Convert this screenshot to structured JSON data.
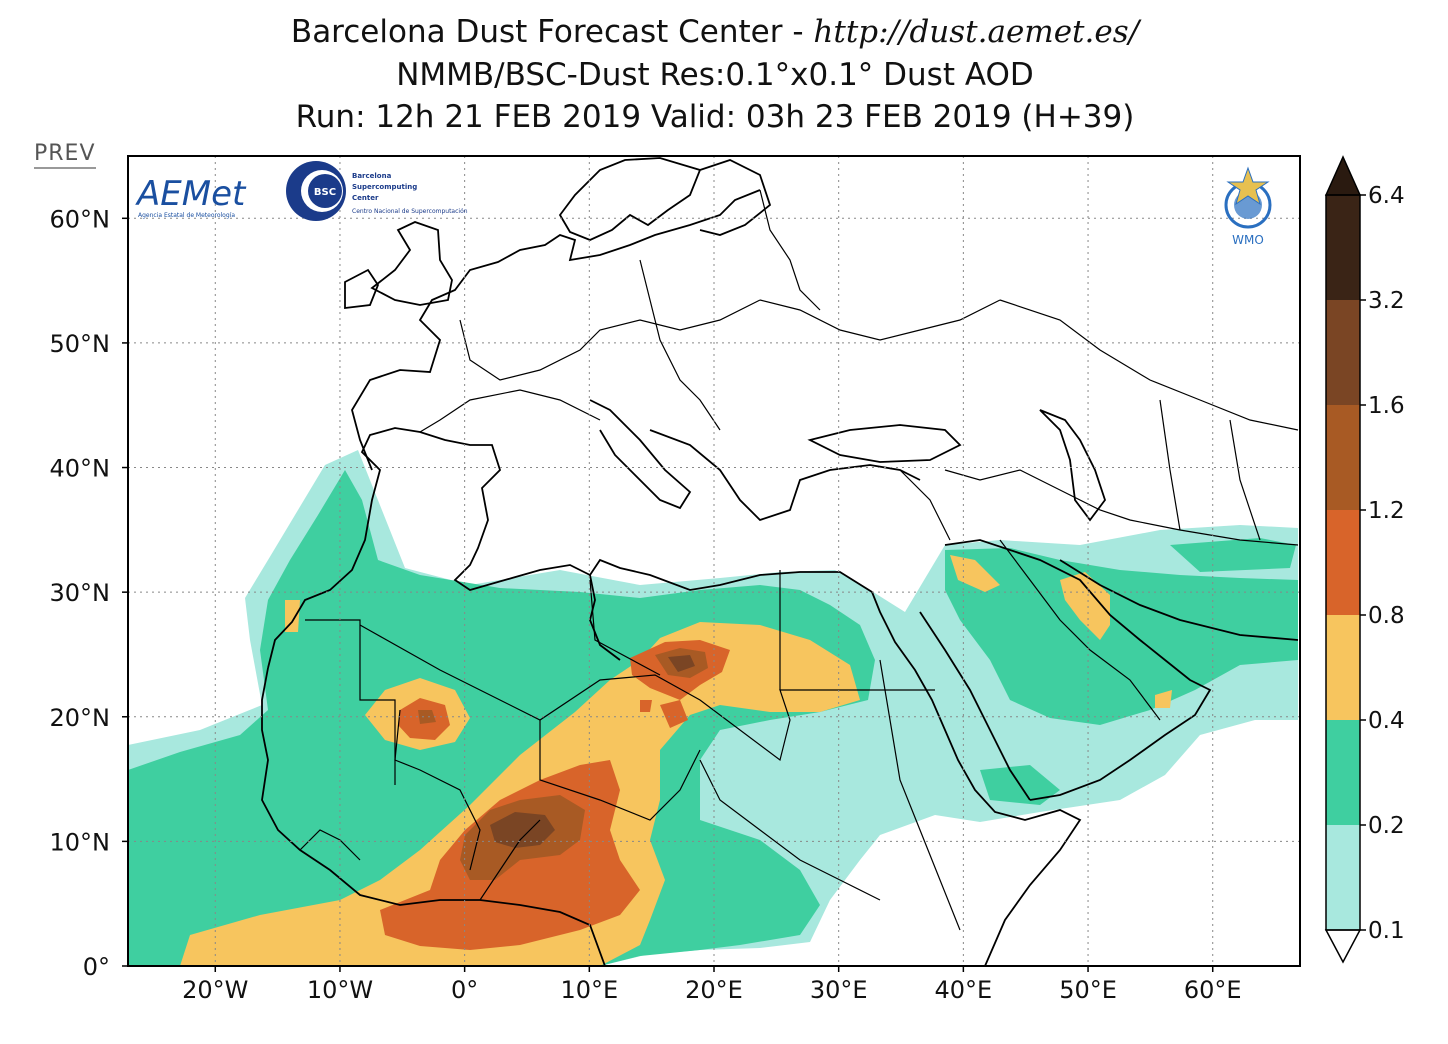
{
  "title": {
    "line1_text": "Barcelona Dust Forecast Center - ",
    "line1_url": "http://dust.aemet.es/",
    "line2": "NMMB/BSC-Dust   Res:0.1°x0.1°   Dust AOD",
    "line3": "Run: 12h 21 FEB 2019   Valid: 03h 23 FEB 2019 (H+39)"
  },
  "prev_label": "PREV",
  "logos": {
    "aemet": "AEMet",
    "aemet_sub": "Agencia Estatal de Meteorología",
    "bsc": "BSC",
    "bsc_name_1": "Barcelona",
    "bsc_name_2": "Supercomputing",
    "bsc_name_3": "Center",
    "bsc_sub": "Centro Nacional de Supercomputación",
    "wmo": "WMO"
  },
  "map": {
    "lon_range": [
      -27,
      67
    ],
    "lat_range": [
      0,
      65
    ],
    "lat_ticks": [
      "0°",
      "10°N",
      "20°N",
      "30°N",
      "40°N",
      "50°N",
      "60°N"
    ],
    "lon_ticks": [
      "20°W",
      "10°W",
      "0°",
      "10°E",
      "20°E",
      "30°E",
      "40°E",
      "50°E",
      "60°E"
    ],
    "grid": "dotted"
  },
  "colorbar": {
    "levels": [
      "0.1",
      "0.2",
      "0.4",
      "0.8",
      "1.2",
      "1.6",
      "3.2",
      "6.4"
    ],
    "colors": [
      "#a8e8de",
      "#3fcfa0",
      "#f7c55e",
      "#d8642a",
      "#a85a24",
      "#7a4524",
      "#3a2416"
    ]
  }
}
